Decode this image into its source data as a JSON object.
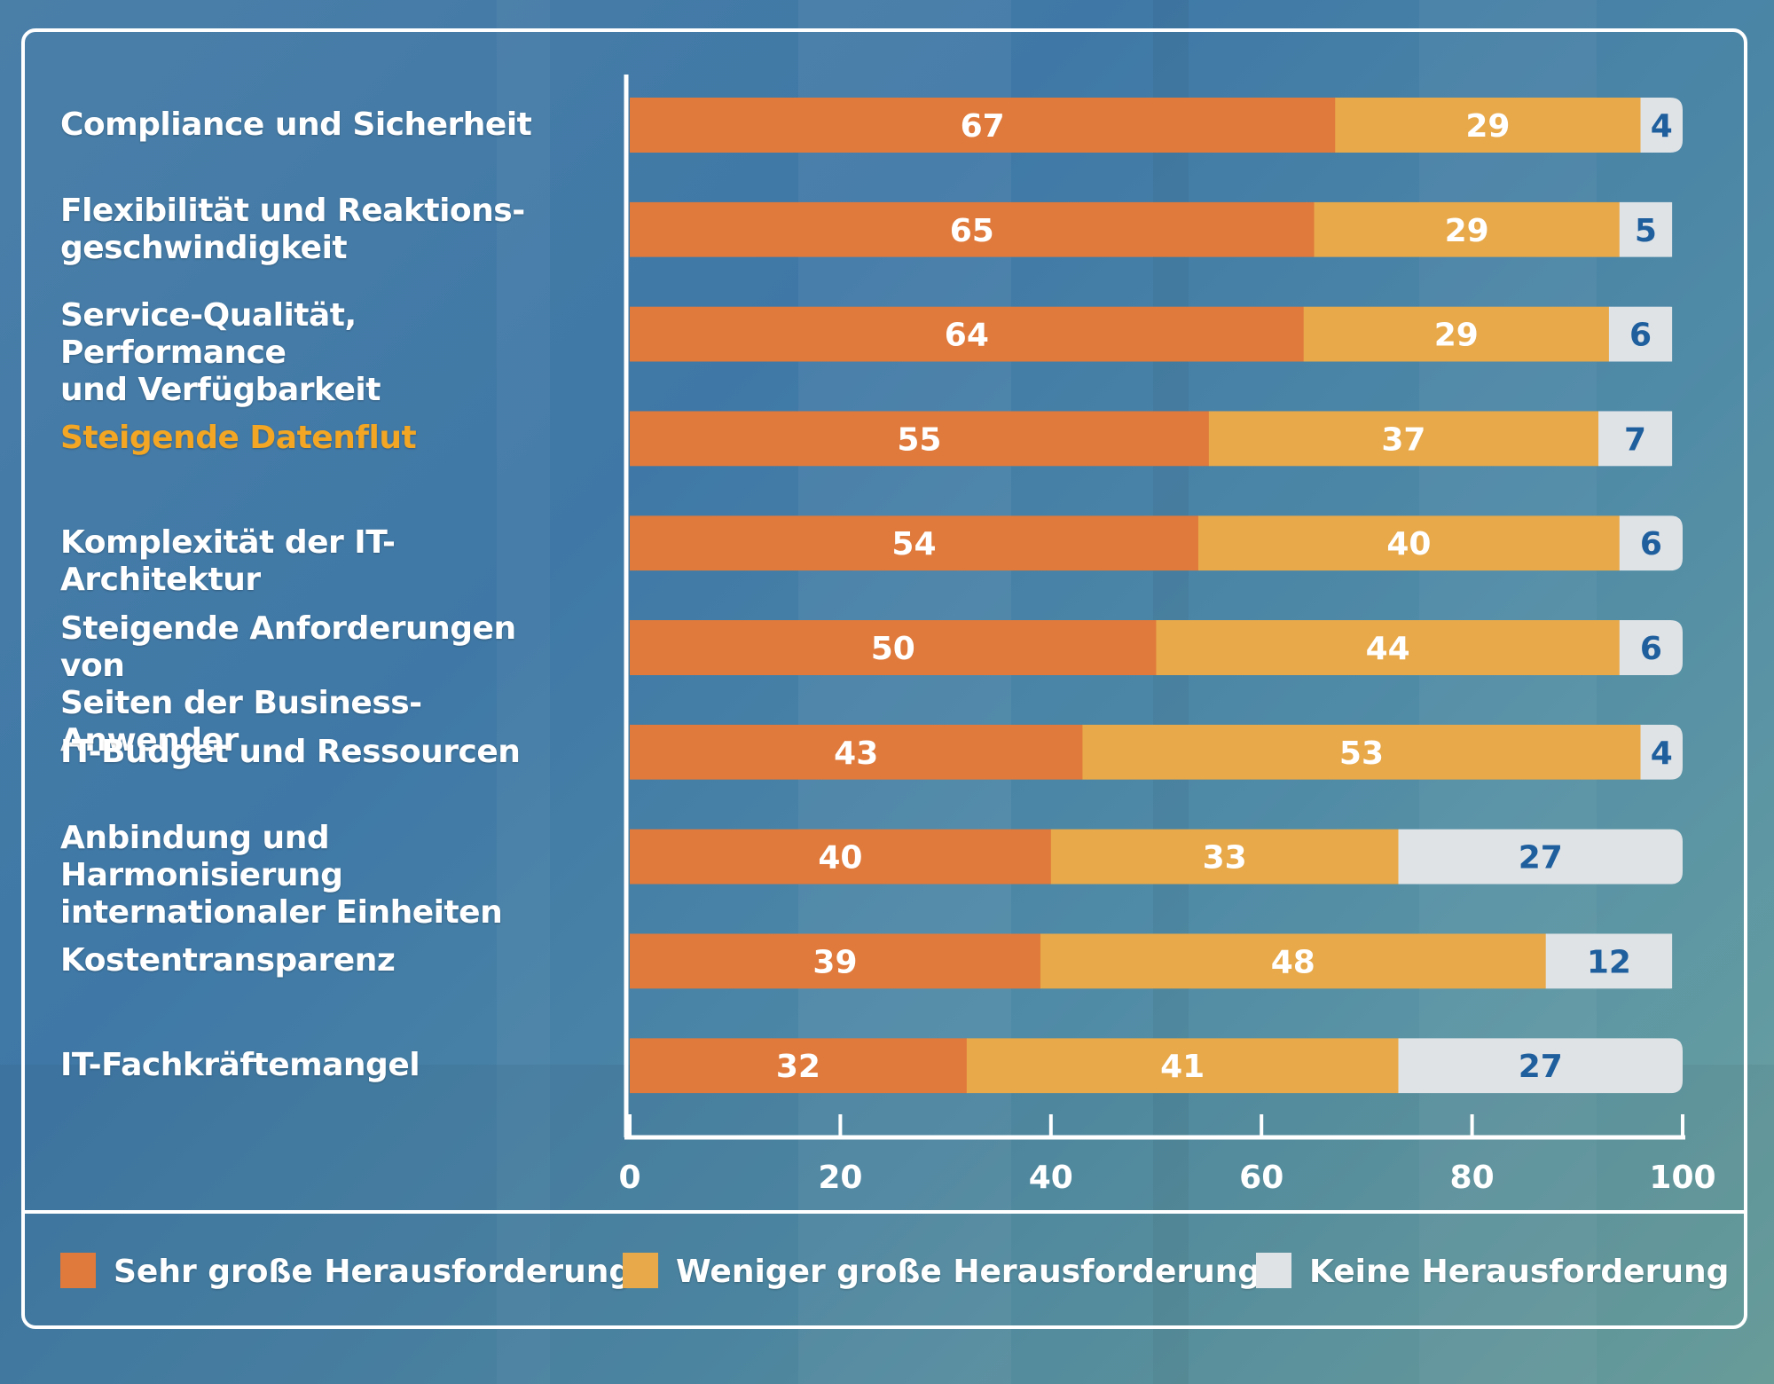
{
  "colors": {
    "sehr": "#e07a3c",
    "weniger": "#e8a94a",
    "keine": "#dfe3e6",
    "label_light": "#ffffff",
    "label_keine": "#1f5f9e",
    "highlight": "#f2a623"
  },
  "chart_data": {
    "type": "bar",
    "orientation": "horizontal",
    "stacked": true,
    "categories": [
      "Compliance und Sicherheit",
      "Flexibilität und Reaktions-\ngeschwindigkeit",
      "Service-Qualität, Performance\nund Verfügbarkeit",
      "Steigende Datenflut",
      "Komplexität der IT-Architektur",
      "Steigende Anforderungen von\nSeiten der Business-Anwender",
      "IT-Budget und Ressourcen",
      "Anbindung und Harmonisierung\ninternationaler Einheiten",
      "Kostentransparenz",
      "IT-Fachkräftemangel"
    ],
    "highlighted_category": "Steigende Datenflut",
    "series": [
      {
        "name": "Sehr große Herausforderung",
        "values": [
          67,
          65,
          64,
          55,
          54,
          50,
          43,
          40,
          39,
          32
        ]
      },
      {
        "name": "Weniger große Herausforderung",
        "values": [
          29,
          29,
          29,
          37,
          40,
          44,
          53,
          33,
          48,
          41
        ]
      },
      {
        "name": "Keine Herausforderung",
        "values": [
          4,
          5,
          6,
          7,
          6,
          6,
          4,
          27,
          12,
          27
        ]
      }
    ],
    "xlim": [
      0,
      100
    ],
    "xticks": [
      0,
      20,
      40,
      60,
      80,
      100
    ],
    "title": "",
    "xlabel": "",
    "ylabel": "",
    "grid": false,
    "legend_position": "bottom",
    "data_labels": true
  }
}
